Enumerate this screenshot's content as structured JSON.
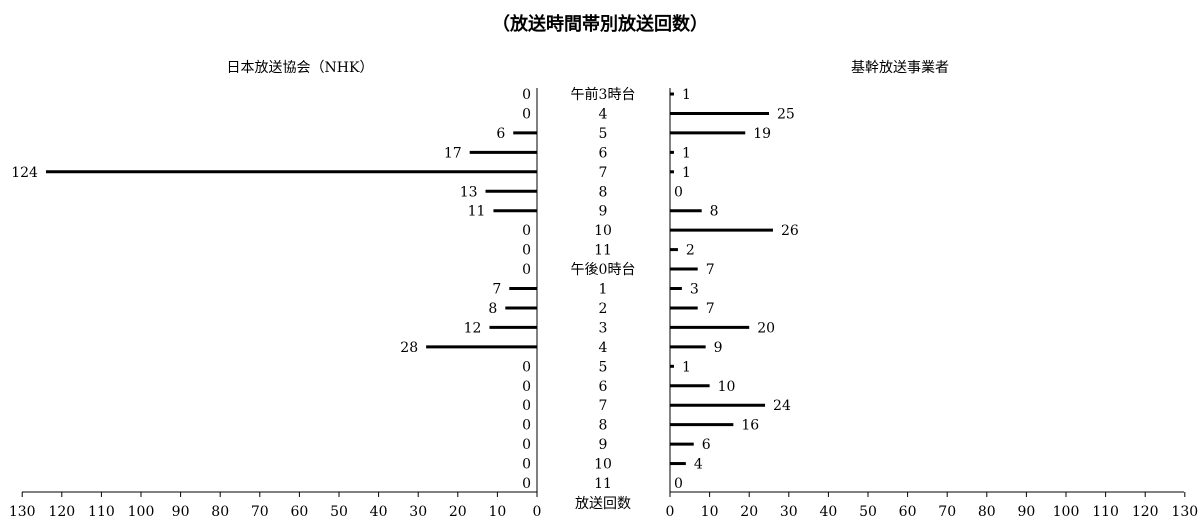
{
  "chart_data": {
    "type": "bar",
    "title": "（放送時間帯別放送回数）",
    "xlabel": "放送回数",
    "categories": [
      "午前3時台",
      "4",
      "5",
      "6",
      "7",
      "8",
      "9",
      "10",
      "11",
      "午後0時台",
      "1",
      "2",
      "3",
      "4",
      "5",
      "6",
      "7",
      "8",
      "9",
      "10",
      "11"
    ],
    "xlim": [
      0,
      130
    ],
    "x_ticks": [
      0,
      10,
      20,
      30,
      40,
      50,
      60,
      70,
      80,
      90,
      100,
      110,
      120,
      130
    ],
    "grid": false,
    "series": [
      {
        "name": "日本放送協会（NHK）",
        "direction": "left",
        "values": [
          0,
          0,
          6,
          17,
          124,
          13,
          11,
          0,
          0,
          0,
          7,
          8,
          12,
          28,
          0,
          0,
          0,
          0,
          0,
          0,
          0
        ]
      },
      {
        "name": "基幹放送事業者",
        "direction": "right",
        "values": [
          1,
          25,
          19,
          1,
          1,
          0,
          8,
          26,
          2,
          7,
          3,
          7,
          20,
          9,
          1,
          10,
          24,
          16,
          6,
          4,
          0
        ]
      }
    ]
  }
}
